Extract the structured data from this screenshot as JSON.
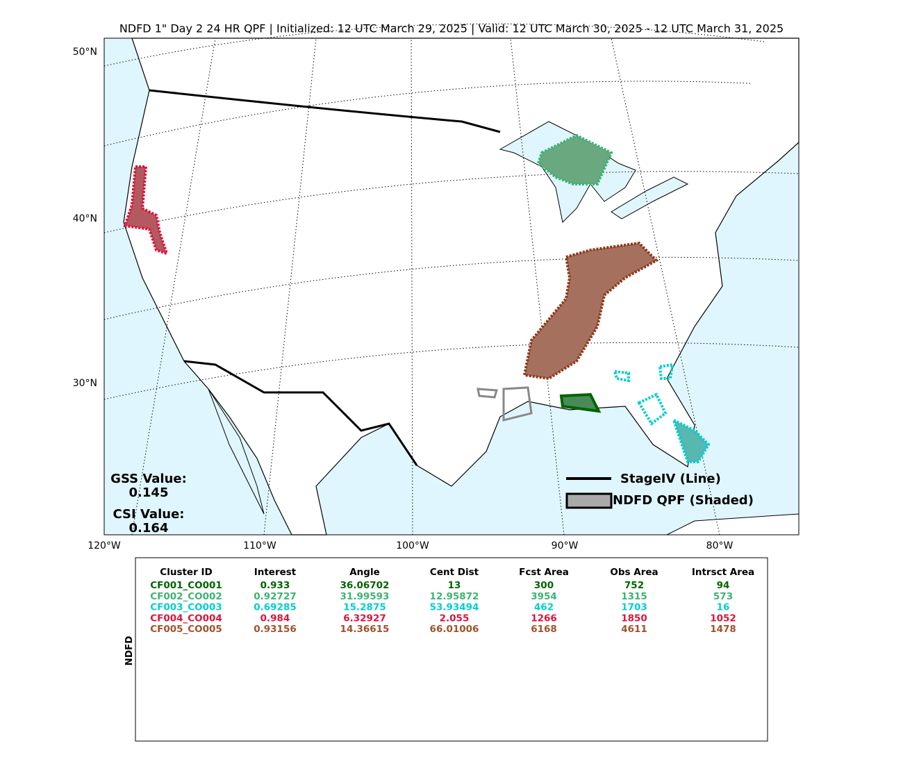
{
  "title": "NDFD 1\" Day 2 24 HR QPF | Initialized: 12 UTC March 29, 2025 | Valid: 12 UTC March 30, 2025 - 12 UTC March 31, 2025",
  "map": {
    "lat_labels": [
      "50°N",
      "40°N",
      "30°N"
    ],
    "lon_labels": [
      "120°W",
      "110°W",
      "100°W",
      "90°W",
      "80°W"
    ],
    "gss": {
      "label": "GSS Value:",
      "value": 0.145
    },
    "csi": {
      "label": "CSI Value:",
      "value": 0.164
    },
    "legend": [
      "StageIV (Line)",
      "NDFD QPF (Shaded)"
    ]
  },
  "table": {
    "side_label": "NDFD",
    "columns": [
      "Cluster ID",
      "Interest",
      "Angle",
      "Cent Dist",
      "Fcst Area",
      "Obs Area",
      "Intrsct Area"
    ],
    "rows": [
      {
        "color": "#006400",
        "cells": [
          "CF001_CO001",
          0.933,
          36.06702,
          13,
          300,
          752,
          94
        ]
      },
      {
        "color": "#3cb371",
        "cells": [
          "CF002_CO002",
          0.92727,
          31.99593,
          12.95872,
          3954,
          1315,
          573
        ]
      },
      {
        "color": "#00ced1",
        "cells": [
          "CF003_CO003",
          0.69285,
          15.2875,
          53.93494,
          462,
          1703,
          16
        ]
      },
      {
        "color": "#dc143c",
        "cells": [
          "CF004_CO004",
          0.984,
          6.32927,
          2.055,
          1266,
          1850,
          1052
        ]
      },
      {
        "color": "#a0522d",
        "cells": [
          "CF005_CO005",
          0.93156,
          14.36615,
          66.01006,
          6168,
          4611,
          1478
        ]
      }
    ]
  }
}
